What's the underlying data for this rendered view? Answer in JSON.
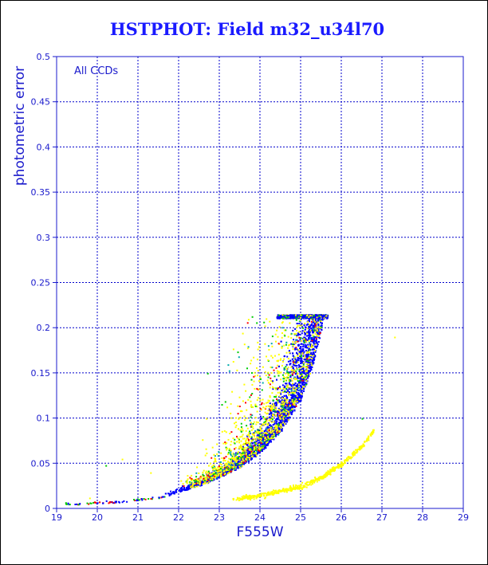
{
  "chart_data": {
    "type": "scatter",
    "title": "HSTPHOT: Field m32_u34l70",
    "xlabel": "F555W",
    "ylabel": "photometric error",
    "annotation": "All CCDs",
    "xlim": [
      19,
      29
    ],
    "ylim": [
      0,
      0.5
    ],
    "xticks": [
      "19",
      "20",
      "21",
      "22",
      "23",
      "24",
      "25",
      "26",
      "27",
      "28",
      "29"
    ],
    "yticks": [
      "0",
      "0.05",
      "0.1",
      "0.15",
      "0.2",
      "0.25",
      "0.3",
      "0.35",
      "0.4",
      "0.45",
      "0.5"
    ],
    "grid": true,
    "error_cap": 0.215,
    "main_sequence": {
      "description_points": [
        {
          "x": 19.5,
          "y": 0.005
        },
        {
          "x": 20.5,
          "y": 0.007
        },
        {
          "x": 21.5,
          "y": 0.012
        },
        {
          "x": 22.0,
          "y": 0.018
        },
        {
          "x": 22.5,
          "y": 0.025
        },
        {
          "x": 23.0,
          "y": 0.034
        },
        {
          "x": 23.5,
          "y": 0.045
        },
        {
          "x": 24.0,
          "y": 0.062
        },
        {
          "x": 24.5,
          "y": 0.085
        },
        {
          "x": 25.0,
          "y": 0.12
        },
        {
          "x": 25.3,
          "y": 0.16
        },
        {
          "x": 25.6,
          "y": 0.215
        }
      ]
    },
    "secondary_sequence": {
      "description_points": [
        {
          "x": 23.2,
          "y": 0.01
        },
        {
          "x": 24.0,
          "y": 0.015
        },
        {
          "x": 25.0,
          "y": 0.025
        },
        {
          "x": 25.5,
          "y": 0.035
        },
        {
          "x": 26.0,
          "y": 0.05
        },
        {
          "x": 26.5,
          "y": 0.07
        },
        {
          "x": 27.0,
          "y": 0.1
        }
      ]
    },
    "series": [
      {
        "color": "#0000ff"
      },
      {
        "color": "#ffff00"
      },
      {
        "color": "#00cc00"
      },
      {
        "color": "#ff0000"
      },
      {
        "color": "#00aaaa"
      }
    ],
    "colors": {
      "axes": "#1a1acc",
      "grid": "#0000cc",
      "title": "#1a1aff"
    }
  }
}
